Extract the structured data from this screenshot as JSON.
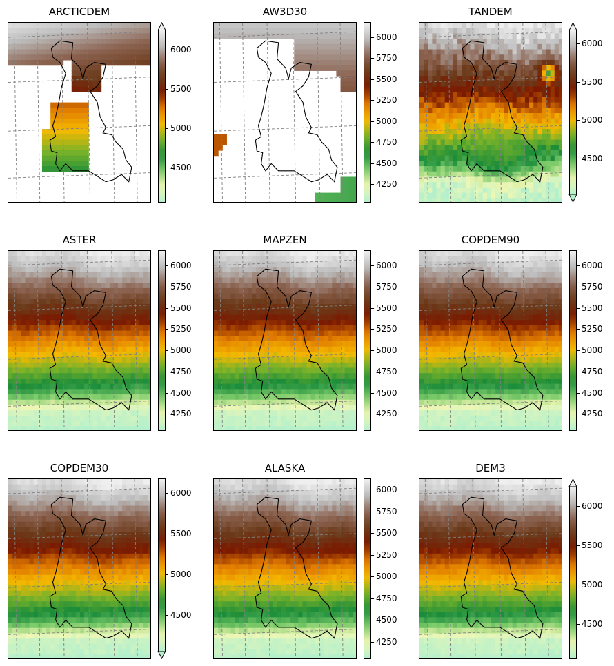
{
  "chart_data": [
    {
      "type": "heatmap",
      "title": "ARCTICDEM",
      "colorbar_ticks": [
        4500,
        5000,
        5500,
        6000
      ],
      "clim": [
        4050,
        6250
      ],
      "extend": "max",
      "coverage": "partial-north-south"
    },
    {
      "type": "heatmap",
      "title": "AW3D30",
      "colorbar_ticks": [
        4250,
        4500,
        4750,
        5000,
        5250,
        5500,
        5750,
        6000
      ],
      "clim": [
        4030,
        6180
      ],
      "extend": "none",
      "coverage": "sparse-north"
    },
    {
      "type": "heatmap",
      "title": "TANDEM",
      "colorbar_ticks": [
        4500,
        5000,
        5500,
        6000
      ],
      "clim": [
        4020,
        6180
      ],
      "extend": "both",
      "coverage": "full-noisy"
    },
    {
      "type": "heatmap",
      "title": "ASTER",
      "colorbar_ticks": [
        4250,
        4500,
        4750,
        5000,
        5250,
        5500,
        5750,
        6000
      ],
      "clim": [
        4050,
        6180
      ],
      "extend": "none",
      "coverage": "full"
    },
    {
      "type": "heatmap",
      "title": "MAPZEN",
      "colorbar_ticks": [
        4250,
        4500,
        4750,
        5000,
        5250,
        5500,
        5750,
        6000
      ],
      "clim": [
        4050,
        6180
      ],
      "extend": "none",
      "coverage": "full"
    },
    {
      "type": "heatmap",
      "title": "COPDEM90",
      "colorbar_ticks": [
        4250,
        4500,
        4750,
        5000,
        5250,
        5500,
        5750,
        6000
      ],
      "clim": [
        4050,
        6180
      ],
      "extend": "none",
      "coverage": "full"
    },
    {
      "type": "heatmap",
      "title": "COPDEM30",
      "colorbar_ticks": [
        4500,
        5000,
        5500,
        6000
      ],
      "clim": [
        4050,
        6180
      ],
      "extend": "min",
      "coverage": "full"
    },
    {
      "type": "heatmap",
      "title": "ALASKA",
      "colorbar_ticks": [
        4250,
        4500,
        4750,
        5000,
        5250,
        5500,
        5750,
        6000
      ],
      "clim": [
        4050,
        6130
      ],
      "extend": "none",
      "coverage": "full"
    },
    {
      "type": "heatmap",
      "title": "DEM3",
      "colorbar_ticks": [
        4500,
        5000,
        5500,
        6000
      ],
      "clim": [
        4050,
        6250
      ],
      "extend": "max",
      "coverage": "full"
    }
  ],
  "colormap": {
    "name": "terrain-like",
    "stops": [
      "#b4f0cc",
      "#f0f7b4",
      "#7dcb6a",
      "#1a8c3a",
      "#77b22a",
      "#f5b900",
      "#e07a00",
      "#7b1a00",
      "#6b3a1a",
      "#8c6452",
      "#bdbdbd",
      "#efefef"
    ],
    "grid_color": "#808080",
    "outline_color": "#000000"
  }
}
